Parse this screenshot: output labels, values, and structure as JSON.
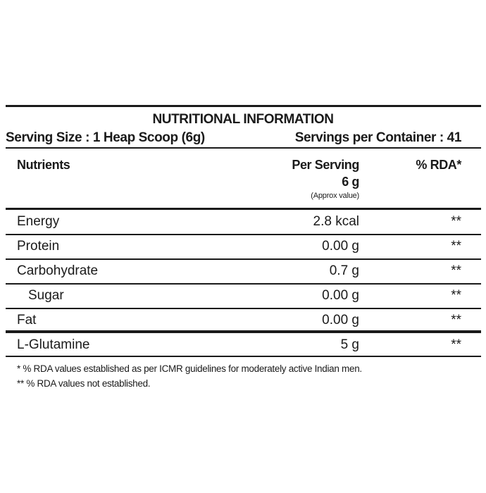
{
  "title": "NUTRITIONAL INFORMATION",
  "serving_size": "Serving Size : 1 Heap Scoop (6g)",
  "servings_per_container": "Servings per Container : 41",
  "headers": {
    "nutrients": "Nutrients",
    "per_serving": "Per Serving",
    "per_serving_amount": "6 g",
    "approx": "(Approx value)",
    "rda": "% RDA*"
  },
  "rows": [
    {
      "name": "Energy",
      "value": "2.8 kcal",
      "rda": "**"
    },
    {
      "name": "Protein",
      "value": "0.00 g",
      "rda": "**"
    },
    {
      "name": "Carbohydrate",
      "value": "0.7 g",
      "rda": "**"
    },
    {
      "name": "Sugar",
      "value": "0.00 g",
      "rda": "**"
    },
    {
      "name": "Fat",
      "value": "0.00 g",
      "rda": "**"
    },
    {
      "name": "L-Glutamine",
      "value": "5 g",
      "rda": "**"
    }
  ],
  "footnotes": [
    "* % RDA values established as per ICMR guidelines for moderately active Indian men.",
    "** % RDA values not established."
  ]
}
